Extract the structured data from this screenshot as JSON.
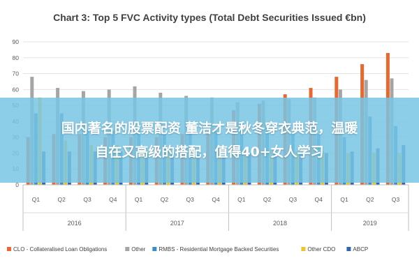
{
  "chart_data": {
    "type": "bar",
    "title": "Chart 3: Top 5 FVC Activity types (Total Debt Securities Issued €bn)",
    "ylim": [
      0,
      90
    ],
    "yticks": [
      0,
      10,
      20,
      30,
      40,
      50,
      60,
      70,
      80,
      90
    ],
    "categories": [
      "Q1",
      "Q2",
      "Q3",
      "Q4",
      "Q1",
      "Q2",
      "Q3",
      "Q4",
      "Q1",
      "Q2",
      "Q3",
      "Q4",
      "Q1",
      "Q2",
      "Q3"
    ],
    "groups": [
      {
        "label": "2016",
        "count": 4
      },
      {
        "label": "2017",
        "count": 4
      },
      {
        "label": "2018",
        "count": 4
      },
      {
        "label": "2019",
        "count": 3
      }
    ],
    "series": [
      {
        "name": "CLO - Collateralised Loan Obligations",
        "color": "#e8692f",
        "values": [
          30,
          32,
          32,
          30,
          30,
          30,
          32,
          33,
          47,
          51,
          57,
          61,
          68,
          76,
          83
        ]
      },
      {
        "name": "Other",
        "color": "#a5a5a5",
        "values": [
          68,
          61,
          59,
          60,
          62,
          58,
          56,
          55,
          52,
          53,
          54,
          55,
          60,
          66,
          67
        ]
      },
      {
        "name": "RMBS - Residential Mortgage Backed Securities",
        "color": "#3a8fc8",
        "values": [
          45,
          45,
          35,
          34,
          34,
          33,
          34,
          34,
          38,
          38,
          32,
          32,
          30,
          43,
          37
        ]
      },
      {
        "name": "Other CDO",
        "color": "#f2c12e",
        "values": [
          55,
          28,
          25,
          25,
          24,
          23,
          23,
          23,
          22,
          22,
          21,
          21,
          20,
          20,
          20
        ]
      },
      {
        "name": "ABCP",
        "color": "#2e66b5",
        "values": [
          21,
          21,
          21,
          21,
          20,
          20,
          19,
          19,
          20,
          21,
          20,
          20,
          21,
          23,
          25
        ]
      }
    ],
    "legend_position": "bottom",
    "grid": "horizontal"
  },
  "overlay": {
    "line1": "国内著名的股票配资 董洁才是秋冬穿衣典范，温暖",
    "line2": "自在又高级的搭配，值得40+女人学习"
  }
}
